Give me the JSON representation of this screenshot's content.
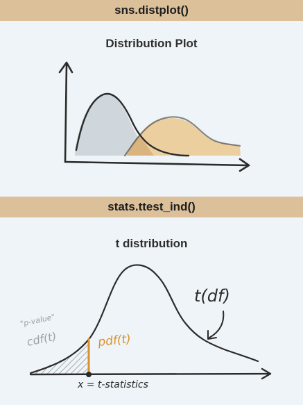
{
  "colors": {
    "background": "#eef4f7",
    "header_bar": "#dcc09a",
    "curve_grey": "#cfd7dd",
    "curve_tan": "#eccf9f",
    "overlap": "#d9b47f",
    "stroke": "#2b2b2b",
    "pdf_accent": "#d9922b",
    "pvalue_text": "#9aa3aa"
  },
  "top_section": {
    "header": "sns.distplot()",
    "title": "Distribution Plot"
  },
  "bottom_section": {
    "header": "stats.ttest_ind()",
    "title": "t distribution",
    "labels": {
      "t_df": "t(df)",
      "p_value": "\"p-value\"",
      "cdf": "cdf(t)",
      "pdf": "pdf(t)",
      "x_axis": "x = t-statistics"
    }
  }
}
